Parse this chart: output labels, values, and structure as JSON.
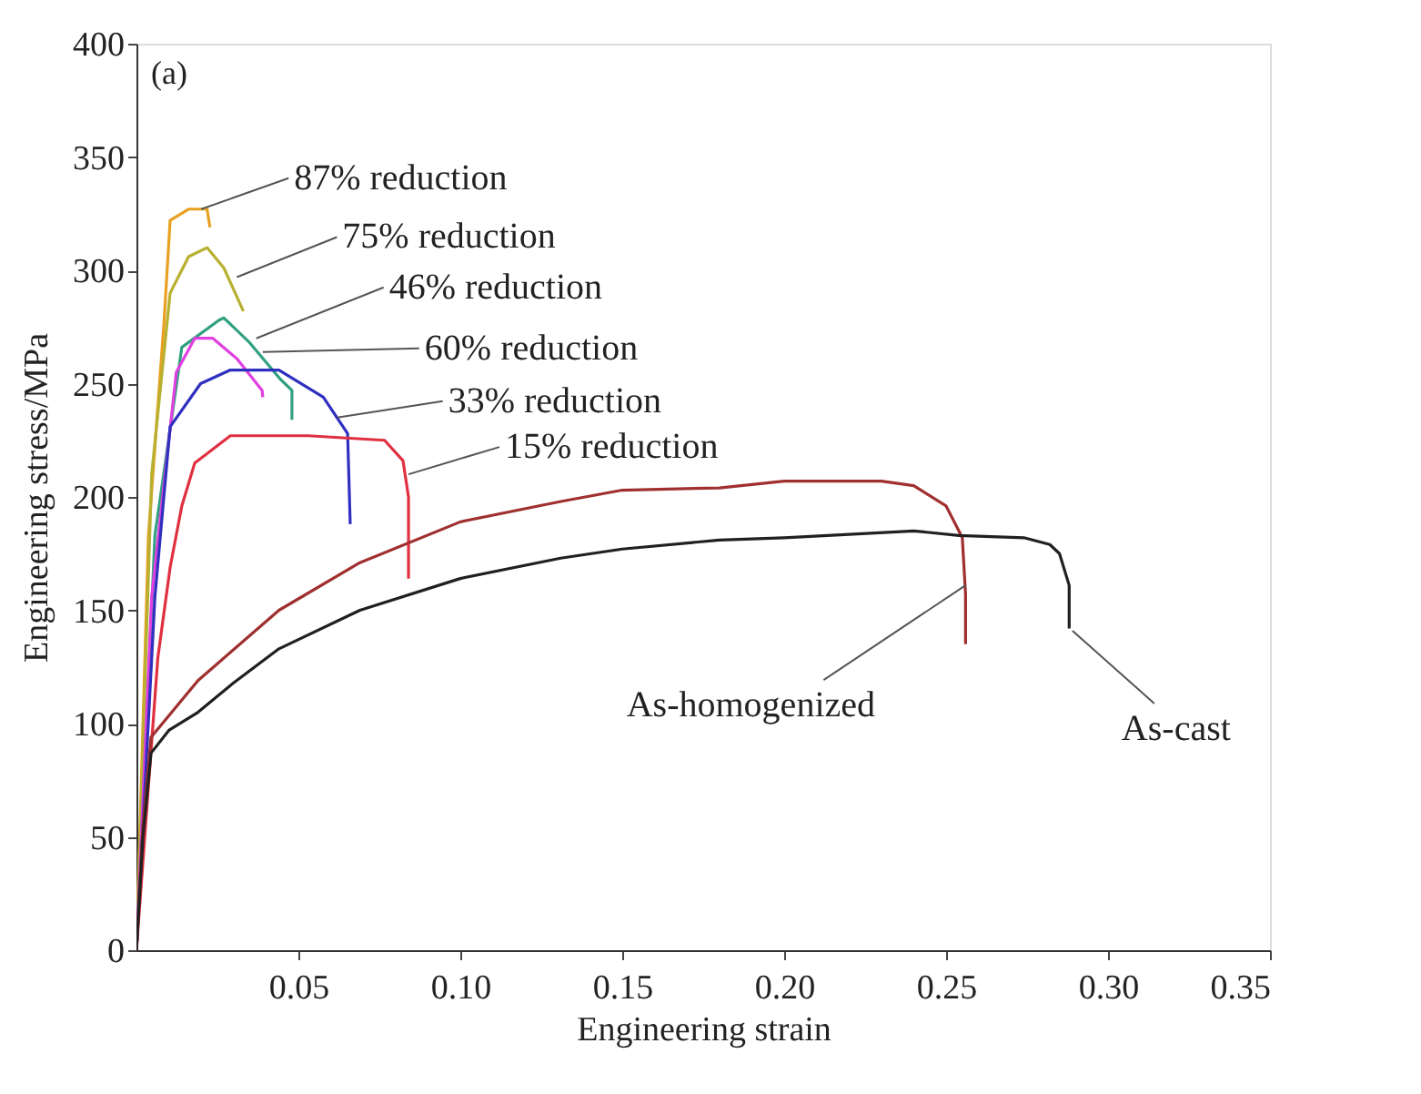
{
  "chart_data": {
    "type": "line",
    "xlabel": "Engineering strain",
    "ylabel": "Engineering stress/MPa",
    "xlim": [
      0,
      0.35
    ],
    "ylim": [
      0,
      400
    ],
    "xticks": [
      0.05,
      {
        "value": 0.1,
        "label": "0.10"
      },
      0.15,
      {
        "value": 0.2,
        "label": "0.20"
      },
      0.25,
      {
        "value": 0.3,
        "label": "0.30"
      },
      0.35
    ],
    "yticks": [
      0,
      50,
      100,
      150,
      200,
      250,
      300,
      350,
      400
    ],
    "grid": false,
    "line_style": "solid",
    "marker": "none",
    "series": [
      {
        "color": "#e8a020",
        "x": [
          0,
          0.0037,
          0.0085,
          0.0104,
          0.0161,
          0.0218,
          0.0227
        ],
        "values": [
          0,
          183,
          277,
          322,
          327,
          327,
          319
        ]
      },
      {
        "color": "#b8b030",
        "x": [
          0,
          0.0047,
          0.0104,
          0.0161,
          0.0218,
          0.027,
          0.033
        ],
        "values": [
          0,
          210,
          290,
          306,
          310,
          301,
          282
        ]
      },
      {
        "color": "#30a080",
        "x": [
          0,
          0.0057,
          0.014,
          0.0255,
          0.027,
          0.035,
          0.0444,
          0.048,
          0.048
        ],
        "values": [
          0,
          183,
          266,
          278,
          279,
          268,
          252,
          247,
          234
        ]
      },
      {
        "color": "#e040e0",
        "x": [
          0,
          0.0047,
          0.0123,
          0.018,
          0.0236,
          0.031,
          0.0388,
          0.039
        ],
        "values": [
          0,
          156,
          255,
          270,
          270,
          261,
          247,
          244
        ]
      },
      {
        "color": "#3030c0",
        "x": [
          0,
          0.0057,
          0.0104,
          0.0198,
          0.029,
          0.044,
          0.0577,
          0.0652,
          0.066
        ],
        "values": [
          0,
          156,
          231,
          250,
          256,
          256,
          244,
          228,
          188
        ]
      },
      {
        "color": "#e03040",
        "x": [
          0,
          0.0066,
          0.0104,
          0.014,
          0.018,
          0.029,
          0.053,
          0.0766,
          0.0823,
          0.084,
          0.084
        ],
        "values": [
          0,
          129,
          169,
          196,
          215,
          227,
          227,
          225,
          216,
          200,
          164
        ]
      },
      {
        "color": "#a03030",
        "x": [
          0,
          0.002,
          0.0045,
          0.019,
          0.044,
          0.069,
          0.1,
          0.131,
          0.15,
          0.18,
          0.2,
          0.23,
          0.24,
          0.25,
          0.255,
          0.256,
          0.256
        ],
        "values": [
          0,
          55,
          94,
          119,
          150,
          171,
          189,
          198,
          203,
          204,
          207,
          207,
          205,
          196,
          182,
          157,
          135
        ]
      },
      {
        "color": "#202020",
        "x": [
          0,
          0.002,
          0.0045,
          0.01,
          0.019,
          0.03,
          0.044,
          0.069,
          0.1,
          0.131,
          0.15,
          0.18,
          0.2,
          0.24,
          0.254,
          0.274,
          0.282,
          0.285,
          0.288,
          0.288
        ],
        "values": [
          0,
          50,
          87,
          97,
          105,
          118,
          133,
          150,
          164,
          173,
          177,
          181,
          182,
          185,
          183,
          182,
          179,
          175,
          161,
          142
        ]
      }
    ],
    "annotations": [
      "(a)",
      {
        "text": "87% reduction",
        "x": 0.02,
        "y": 327
      },
      {
        "text": "75% reduction",
        "x": 0.031,
        "y": 297
      },
      {
        "text": "46% reduction",
        "x": 0.037,
        "y": 270
      },
      {
        "text": "60% reduction",
        "x": 0.039,
        "y": 264
      },
      {
        "text": "33% reduction",
        "x": 0.062,
        "y": 235
      },
      {
        "text": "15% reduction",
        "x": 0.084,
        "y": 210
      },
      {
        "text": "As-homogenized",
        "x": 0.256,
        "y": 161
      },
      {
        "text": "As-cast",
        "x": 0.289,
        "y": 141
      }
    ]
  }
}
